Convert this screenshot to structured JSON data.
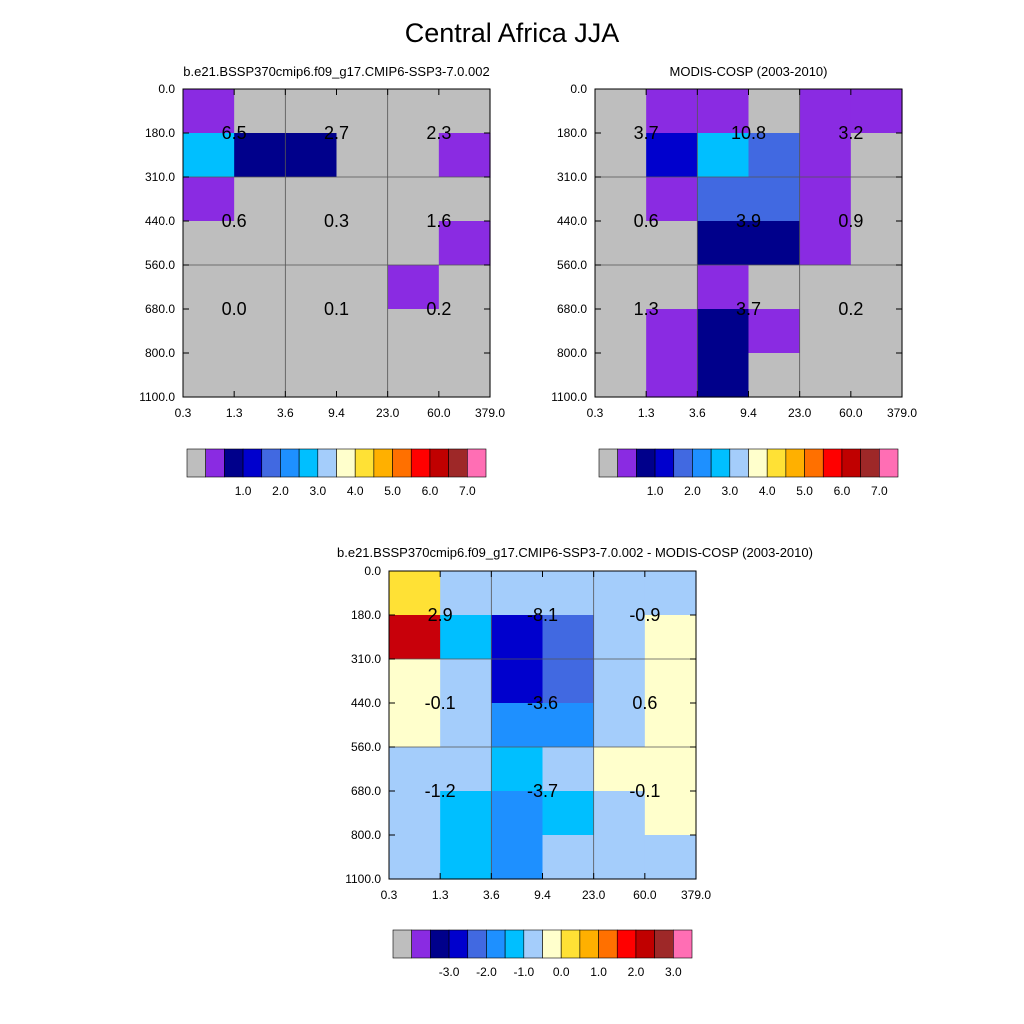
{
  "page_title": "Central Africa JJA",
  "chart_data": [
    {
      "type": "heatmap",
      "id": "model",
      "title": "b.e21.BSSP370cmip6.f09_g17.CMIP6-SSP3-7.0.002",
      "x_ticks": [
        "0.3",
        "1.3",
        "3.6",
        "9.4",
        "23.0",
        "60.0",
        "379.0"
      ],
      "y_ticks": [
        "0.0",
        "180.0",
        "310.0",
        "440.0",
        "560.0",
        "680.0",
        "800.0",
        "1100.0"
      ],
      "cells": [
        [
          "purple",
          "gray",
          "gray",
          "gray",
          "gray",
          "gray"
        ],
        [
          "deepskyblue",
          "navy",
          "navy",
          "gray",
          "gray",
          "purple"
        ],
        [
          "purple",
          "gray",
          "gray",
          "gray",
          "gray",
          "gray"
        ],
        [
          "gray",
          "gray",
          "gray",
          "gray",
          "gray",
          "purple"
        ],
        [
          "gray",
          "gray",
          "gray",
          "gray",
          "purple",
          "gray"
        ],
        [
          "gray",
          "gray",
          "gray",
          "gray",
          "gray",
          "gray"
        ],
        [
          "gray",
          "gray",
          "gray",
          "gray",
          "gray",
          "gray"
        ]
      ],
      "block_labels": [
        [
          "6.5",
          "2.7",
          "2.3"
        ],
        [
          "0.6",
          "0.3",
          "1.6"
        ],
        [
          "0.0",
          "0.1",
          "0.2"
        ]
      ],
      "colorbar": {
        "colors": [
          "gray",
          "purple",
          "navy",
          "mediumblue",
          "royalblue",
          "dodgerblue",
          "deepskyblue",
          "lightblue",
          "lightyellow",
          "gold",
          "orange",
          "darkorange",
          "red",
          "firebrick",
          "brown",
          "hotpink"
        ],
        "labels": [
          "1.0",
          "2.0",
          "3.0",
          "4.0",
          "5.0",
          "6.0",
          "7.0"
        ]
      }
    },
    {
      "type": "heatmap",
      "id": "obs",
      "title": "MODIS-COSP (2003-2010)",
      "x_ticks": [
        "0.3",
        "1.3",
        "3.6",
        "9.4",
        "23.0",
        "60.0",
        "379.0"
      ],
      "y_ticks": [
        "0.0",
        "180.0",
        "310.0",
        "440.0",
        "560.0",
        "680.0",
        "800.0",
        "1100.0"
      ],
      "cells": [
        [
          "gray",
          "purple",
          "purple",
          "gray",
          "purple",
          "purple"
        ],
        [
          "gray",
          "mediumblue",
          "deepskyblue",
          "royalblue",
          "purple",
          "gray"
        ],
        [
          "gray",
          "purple",
          "royalblue",
          "royalblue",
          "purple",
          "gray"
        ],
        [
          "gray",
          "gray",
          "navy",
          "navy",
          "purple",
          "gray"
        ],
        [
          "gray",
          "gray",
          "purple",
          "gray",
          "gray",
          "gray"
        ],
        [
          "gray",
          "purple",
          "navy",
          "purple",
          "gray",
          "gray"
        ],
        [
          "gray",
          "purple",
          "navy",
          "gray",
          "gray",
          "gray"
        ]
      ],
      "block_labels": [
        [
          "3.7",
          "10.8",
          "3.2"
        ],
        [
          "0.6",
          "3.9",
          "0.9"
        ],
        [
          "1.3",
          "3.7",
          "0.2"
        ]
      ],
      "colorbar": {
        "colors": [
          "gray",
          "purple",
          "navy",
          "mediumblue",
          "royalblue",
          "dodgerblue",
          "deepskyblue",
          "lightblue",
          "lightyellow",
          "gold",
          "orange",
          "darkorange",
          "red",
          "firebrick",
          "brown",
          "hotpink"
        ],
        "labels": [
          "1.0",
          "2.0",
          "3.0",
          "4.0",
          "5.0",
          "6.0",
          "7.0"
        ]
      }
    },
    {
      "type": "heatmap",
      "id": "diff",
      "title": "b.e21.BSSP370cmip6.f09_g17.CMIP6-SSP3-7.0.002 - MODIS-COSP (2003-2010)",
      "x_ticks": [
        "0.3",
        "1.3",
        "3.6",
        "9.4",
        "23.0",
        "60.0",
        "379.0"
      ],
      "y_ticks": [
        "0.0",
        "180.0",
        "310.0",
        "440.0",
        "560.0",
        "680.0",
        "800.0",
        "1100.0"
      ],
      "cells": [
        [
          "gold",
          "lightblue",
          "lightblue",
          "lightblue",
          "lightblue",
          "lightblue"
        ],
        [
          "darkred",
          "deepskyblue",
          "mediumblue",
          "royalblue",
          "lightblue",
          "lightyellow"
        ],
        [
          "lightyellow",
          "lightblue",
          "mediumblue",
          "royalblue",
          "lightblue",
          "lightyellow"
        ],
        [
          "lightyellow",
          "lightblue",
          "dodgerblue",
          "dodgerblue",
          "lightblue",
          "lightyellow"
        ],
        [
          "lightblue",
          "lightblue",
          "deepskyblue",
          "lightblue",
          "lightyellow",
          "lightyellow"
        ],
        [
          "lightblue",
          "deepskyblue",
          "dodgerblue",
          "deepskyblue",
          "lightblue",
          "lightyellow"
        ],
        [
          "lightblue",
          "deepskyblue",
          "dodgerblue",
          "lightblue",
          "lightblue",
          "lightblue"
        ]
      ],
      "block_labels": [
        [
          "2.9",
          "-8.1",
          "-0.9"
        ],
        [
          "-0.1",
          "-3.6",
          "0.6"
        ],
        [
          "-1.2",
          "-3.7",
          "-0.1"
        ]
      ],
      "colorbar": {
        "colors": [
          "gray",
          "purple",
          "navy",
          "mediumblue",
          "royalblue",
          "dodgerblue",
          "deepskyblue",
          "lightblue",
          "lightyellow",
          "gold",
          "orange",
          "darkorange",
          "red",
          "firebrick",
          "brown",
          "hotpink"
        ],
        "labels": [
          "-3.0",
          "-2.0",
          "-1.0",
          "0.0",
          "1.0",
          "2.0",
          "3.0"
        ]
      }
    }
  ],
  "colors": {
    "gray": "#bebebe",
    "purple": "#8a2be2",
    "navy": "#00008b",
    "mediumblue": "#0000cd",
    "royalblue": "#4169e1",
    "dodgerblue": "#1e90ff",
    "deepskyblue": "#00bfff",
    "lightblue": "#a4cdfb",
    "lightyellow": "#ffffcc",
    "gold": "#ffe135",
    "orange": "#ffb000",
    "darkorange": "#ff7000",
    "red": "#ff0000",
    "darkred": "#c8000a",
    "firebrick": "#c00000",
    "brown": "#9e2828",
    "hotpink": "#ff6eb4"
  }
}
